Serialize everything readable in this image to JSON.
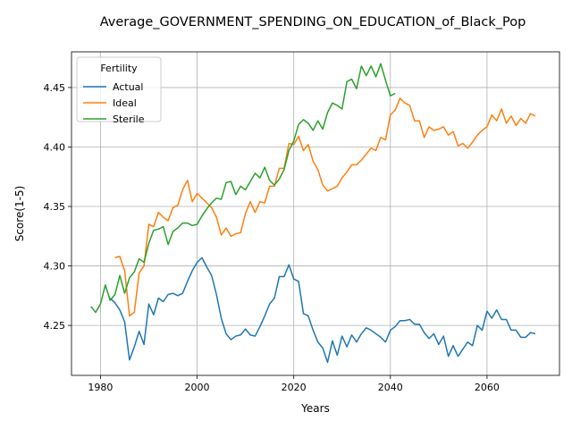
{
  "chart_data": {
    "type": "line",
    "title": "Average_GOVERNMENT_SPENDING_ON_EDUCATION_of_Black_Pop",
    "xlabel": "Years",
    "ylabel": "Score(1-5)",
    "xlim": [
      1974,
      2075
    ],
    "ylim": [
      4.208,
      4.48
    ],
    "xticks": [
      1980,
      2000,
      2020,
      2040,
      2060
    ],
    "xtick_labels": [
      "1980",
      "2000",
      "2020",
      "2040",
      "2060"
    ],
    "yticks": [
      4.25,
      4.3,
      4.35,
      4.4,
      4.45
    ],
    "ytick_labels": [
      "4.25",
      "4.30",
      "4.35",
      "4.40",
      "4.45"
    ],
    "grid": true,
    "legend": {
      "title": "Fertility",
      "placement": "top-left"
    },
    "series": [
      {
        "name": "Actual",
        "color": "#1f77b4",
        "x": [
          1982,
          1983,
          1984,
          1985,
          1986,
          1987,
          1988,
          1989,
          1990,
          1991,
          1992,
          1993,
          1994,
          1995,
          1996,
          1997,
          1998,
          1999,
          2000,
          2001,
          2002,
          2003,
          2004,
          2005,
          2006,
          2007,
          2008,
          2009,
          2010,
          2011,
          2012,
          2013,
          2014,
          2015,
          2016,
          2017,
          2018,
          2019,
          2020,
          2021,
          2022,
          2023,
          2024,
          2025,
          2026,
          2027,
          2028,
          2029,
          2030,
          2031,
          2032,
          2033,
          2034,
          2035,
          2036,
          2037,
          2038,
          2039,
          2040,
          2041,
          2042,
          2043,
          2044,
          2045,
          2046,
          2047,
          2048,
          2049,
          2050,
          2051,
          2052,
          2053,
          2054,
          2055,
          2056,
          2057,
          2058,
          2059,
          2060,
          2061,
          2062,
          2063,
          2064,
          2065,
          2066,
          2067,
          2068,
          2069,
          2070
        ],
        "y": [
          4.273,
          4.269,
          4.263,
          4.253,
          4.221,
          4.232,
          4.245,
          4.234,
          4.268,
          4.259,
          4.273,
          4.27,
          4.276,
          4.277,
          4.275,
          4.277,
          4.287,
          4.296,
          4.303,
          4.307,
          4.299,
          4.292,
          4.276,
          4.256,
          4.243,
          4.238,
          4.241,
          4.242,
          4.247,
          4.242,
          4.241,
          4.249,
          4.258,
          4.268,
          4.273,
          4.291,
          4.291,
          4.301,
          4.289,
          4.287,
          4.26,
          4.258,
          4.246,
          4.236,
          4.231,
          4.219,
          4.237,
          4.225,
          4.241,
          4.232,
          4.242,
          4.236,
          4.243,
          4.248,
          4.246,
          4.243,
          4.24,
          4.236,
          4.246,
          4.249,
          4.254,
          4.254,
          4.255,
          4.251,
          4.251,
          4.244,
          4.239,
          4.243,
          4.234,
          4.241,
          4.224,
          4.233,
          4.224,
          4.23,
          4.236,
          4.233,
          4.25,
          4.246,
          4.262,
          4.256,
          4.263,
          4.255,
          4.255,
          4.246,
          4.246,
          4.24,
          4.24,
          4.244,
          4.243
        ]
      },
      {
        "name": "Ideal",
        "color": "#ff7f0e",
        "x": [
          1983,
          1984,
          1985,
          1986,
          1987,
          1988,
          1989,
          1990,
          1991,
          1992,
          1993,
          1994,
          1995,
          1996,
          1997,
          1998,
          1999,
          2000,
          2001,
          2002,
          2003,
          2004,
          2005,
          2006,
          2007,
          2008,
          2009,
          2010,
          2011,
          2012,
          2013,
          2014,
          2015,
          2016,
          2017,
          2018,
          2019,
          2020,
          2021,
          2022,
          2023,
          2024,
          2025,
          2026,
          2027,
          2028,
          2029,
          2030,
          2031,
          2032,
          2033,
          2034,
          2035,
          2036,
          2037,
          2038,
          2039,
          2040,
          2041,
          2042,
          2043,
          2044,
          2045,
          2046,
          2047,
          2048,
          2049,
          2050,
          2051,
          2052,
          2053,
          2054,
          2055,
          2056,
          2057,
          2058,
          2059,
          2060,
          2061,
          2062,
          2063,
          2064,
          2065,
          2066,
          2067,
          2068,
          2069,
          2070
        ],
        "y": [
          4.307,
          4.308,
          4.296,
          4.258,
          4.261,
          4.294,
          4.3,
          4.335,
          4.333,
          4.345,
          4.341,
          4.338,
          4.349,
          4.351,
          4.364,
          4.372,
          4.354,
          4.361,
          4.357,
          4.353,
          4.349,
          4.341,
          4.326,
          4.332,
          4.325,
          4.327,
          4.328,
          4.344,
          4.354,
          4.345,
          4.354,
          4.353,
          4.367,
          4.367,
          4.382,
          4.382,
          4.403,
          4.402,
          4.409,
          4.397,
          4.402,
          4.388,
          4.381,
          4.368,
          4.363,
          4.365,
          4.367,
          4.374,
          4.379,
          4.385,
          4.385,
          4.389,
          4.394,
          4.399,
          4.397,
          4.408,
          4.406,
          4.427,
          4.431,
          4.441,
          4.437,
          4.435,
          4.422,
          4.422,
          4.408,
          4.417,
          4.414,
          4.415,
          4.417,
          4.41,
          4.413,
          4.401,
          4.403,
          4.399,
          4.404,
          4.41,
          4.414,
          4.417,
          4.427,
          4.422,
          4.432,
          4.42,
          4.426,
          4.418,
          4.424,
          4.42,
          4.428,
          4.426
        ]
      },
      {
        "name": "Sterile",
        "color": "#2ca02c",
        "x": [
          1978,
          1979,
          1980,
          1981,
          1982,
          1983,
          1984,
          1985,
          1986,
          1987,
          1988,
          1989,
          1990,
          1991,
          1992,
          1993,
          1994,
          1995,
          1996,
          1997,
          1998,
          1999,
          2000,
          2001,
          2002,
          2003,
          2004,
          2005,
          2006,
          2007,
          2008,
          2009,
          2010,
          2011,
          2012,
          2013,
          2014,
          2015,
          2016,
          2017,
          2018,
          2019,
          2020,
          2021,
          2022,
          2023,
          2024,
          2025,
          2026,
          2027,
          2028,
          2029,
          2030,
          2031,
          2032,
          2033,
          2034,
          2035,
          2036,
          2037,
          2038,
          2039,
          2040,
          2041
        ],
        "y": [
          4.266,
          4.261,
          4.268,
          4.284,
          4.271,
          4.276,
          4.292,
          4.277,
          4.29,
          4.295,
          4.306,
          4.303,
          4.319,
          4.33,
          4.331,
          4.333,
          4.318,
          4.329,
          4.332,
          4.336,
          4.336,
          4.334,
          4.335,
          4.342,
          4.348,
          4.353,
          4.357,
          4.356,
          4.37,
          4.371,
          4.36,
          4.367,
          4.364,
          4.371,
          4.378,
          4.374,
          4.383,
          4.372,
          4.368,
          4.373,
          4.381,
          4.397,
          4.405,
          4.419,
          4.423,
          4.42,
          4.414,
          4.422,
          4.415,
          4.429,
          4.437,
          4.435,
          4.432,
          4.455,
          4.457,
          4.449,
          4.468,
          4.46,
          4.468,
          4.459,
          4.47,
          4.456,
          4.443,
          4.445
        ]
      }
    ]
  }
}
